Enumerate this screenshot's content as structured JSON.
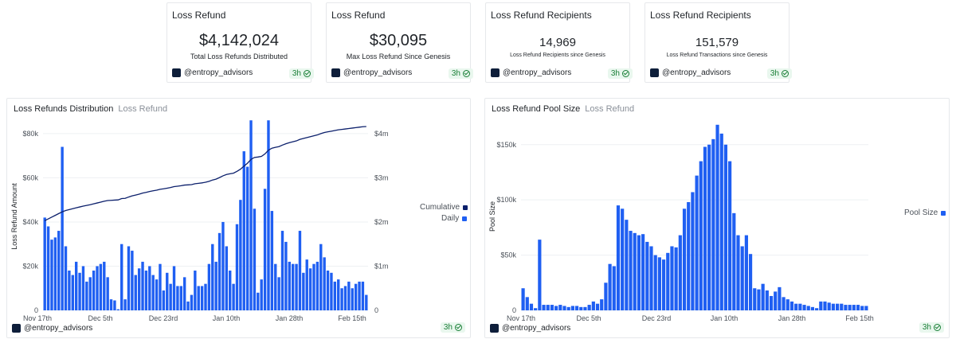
{
  "stats": [
    {
      "title": "Loss Refund",
      "value": "$4,142,024",
      "subtitle": "Total Loss Refunds Distributed",
      "author": "@entropy_advisors",
      "age": "3h"
    },
    {
      "title": "Loss Refund",
      "value": "$30,095",
      "subtitle": "Max Loss Refund Since Genesis",
      "author": "@entropy_advisors",
      "age": "3h"
    },
    {
      "title": "Loss Refund Recipients",
      "value": "14,969",
      "subtitle": "Loss Refund Recipients since Genesis",
      "author": "@entropy_advisors",
      "age": "3h"
    },
    {
      "title": "Loss Refund Recipients",
      "value": "151,579",
      "subtitle": "Loss Refund Transactions since Genesis",
      "author": "@entropy_advisors",
      "age": "3h"
    }
  ],
  "charts": [
    {
      "title": "Loss Refunds Distribution",
      "subtitle": "Loss Refund",
      "author": "@entropy_advisors",
      "age": "3h"
    },
    {
      "title": "Loss Refund Pool Size",
      "subtitle": "Loss Refund",
      "author": "@entropy_advisors",
      "age": "3h"
    }
  ],
  "colors": {
    "daily": "#1f5ff2",
    "cumulative": "#0b1f6b",
    "pool": "#1f5ff2",
    "badge": "#1a7f37"
  },
  "icons": {
    "avatar": "entropy-avatar-icon",
    "badge": "check-circle-icon"
  },
  "chart_data": [
    {
      "type": "bar",
      "title": "Loss Refunds Distribution",
      "subtitle": "Loss Refund",
      "xlabel": "",
      "ylabel": "Loss Refund Amount",
      "x_ticks": [
        "Nov 17th",
        "Dec 5th",
        "Dec 23rd",
        "Jan 10th",
        "Jan 28th",
        "Feb 15th"
      ],
      "y_ticks": [
        "0",
        "$20k",
        "$40k",
        "$60k",
        "$80k"
      ],
      "y2_ticks": [
        "0",
        "$1m",
        "$2m",
        "$3m",
        "$4m"
      ],
      "ylim": [
        0,
        85000
      ],
      "y2lim": [
        0,
        4250000
      ],
      "legend_position": "right",
      "series": [
        {
          "name": "Daily",
          "type": "bar",
          "axis": "left",
          "values": [
            42000,
            38000,
            32000,
            33000,
            36000,
            74000,
            29000,
            18000,
            16000,
            22000,
            17000,
            20000,
            13000,
            15000,
            18000,
            20000,
            21000,
            22000,
            15000,
            5000,
            4500,
            500,
            30000,
            5000,
            29000,
            27000,
            16000,
            19000,
            22000,
            18000,
            20000,
            16000,
            14000,
            21000,
            9000,
            17000,
            12000,
            20000,
            11000,
            11000,
            15000,
            4000,
            7000,
            18000,
            11000,
            11000,
            12000,
            21000,
            30000,
            22000,
            35000,
            40000,
            29000,
            18000,
            12000,
            39000,
            50000,
            72000,
            65000,
            86000,
            46000,
            8000,
            14000,
            55000,
            86000,
            45000,
            21000,
            15000,
            36000,
            31000,
            22000,
            21000,
            21000,
            36000,
            17000,
            23000,
            19000,
            21000,
            22000,
            30000,
            24000,
            18000,
            17000,
            13000,
            14000,
            10000,
            11000,
            13000,
            10000,
            12000,
            13000,
            13000,
            7000
          ]
        },
        {
          "name": "Cumulative",
          "type": "line",
          "axis": "right",
          "values": [
            2030000,
            2070000,
            2110000,
            2150000,
            2190000,
            2230000,
            2260000,
            2280000,
            2300000,
            2320000,
            2340000,
            2360000,
            2375000,
            2390000,
            2410000,
            2430000,
            2450000,
            2470000,
            2485000,
            2490000,
            2495000,
            2500000,
            2530000,
            2535000,
            2565000,
            2590000,
            2610000,
            2630000,
            2655000,
            2670000,
            2690000,
            2705000,
            2720000,
            2740000,
            2750000,
            2765000,
            2780000,
            2800000,
            2810000,
            2820000,
            2835000,
            2840000,
            2845000,
            2865000,
            2875000,
            2885000,
            2900000,
            2920000,
            2950000,
            2970000,
            3005000,
            3045000,
            3075000,
            3090000,
            3105000,
            3145000,
            3195000,
            3265000,
            3330000,
            3415000,
            3460000,
            3470000,
            3485000,
            3540000,
            3625000,
            3670000,
            3690000,
            3705000,
            3740000,
            3770000,
            3795000,
            3815000,
            3835000,
            3870000,
            3890000,
            3910000,
            3930000,
            3950000,
            3970000,
            4000000,
            4025000,
            4040000,
            4055000,
            4070000,
            4085000,
            4095000,
            4105000,
            4115000,
            4125000,
            4135000,
            4145000,
            4155000,
            4160000
          ]
        }
      ]
    },
    {
      "type": "bar",
      "title": "Loss Refund Pool Size",
      "subtitle": "Loss Refund",
      "xlabel": "",
      "ylabel": "Pool Size",
      "x_ticks": [
        "Nov 17th",
        "Dec 5th",
        "Dec 23rd",
        "Jan 10th",
        "Jan 28th",
        "Feb 15th"
      ],
      "y_ticks": [
        "0",
        "$50k",
        "$100k",
        "$150k"
      ],
      "ylim": [
        0,
        170000
      ],
      "legend_position": "right",
      "series": [
        {
          "name": "Pool Size",
          "values": [
            20000,
            12000,
            6000,
            2000,
            64000,
            5000,
            5000,
            5000,
            4000,
            5000,
            4000,
            3000,
            4000,
            4000,
            3000,
            3000,
            5000,
            8000,
            6000,
            10000,
            25000,
            42000,
            40000,
            95000,
            92000,
            82000,
            72000,
            70000,
            68000,
            69000,
            62000,
            58000,
            50000,
            48000,
            46000,
            52000,
            58000,
            57000,
            68000,
            92000,
            98000,
            107000,
            122000,
            135000,
            148000,
            150000,
            155000,
            168000,
            160000,
            150000,
            135000,
            88000,
            68000,
            58000,
            68000,
            51000,
            20000,
            19000,
            24000,
            18000,
            13000,
            17000,
            21000,
            12000,
            10000,
            8000,
            6000,
            6000,
            5000,
            4000,
            3000,
            2000,
            8000,
            8000,
            7000,
            6000,
            6000,
            6000,
            5000,
            5000,
            5000,
            5000,
            4000,
            4000
          ]
        }
      ]
    }
  ]
}
